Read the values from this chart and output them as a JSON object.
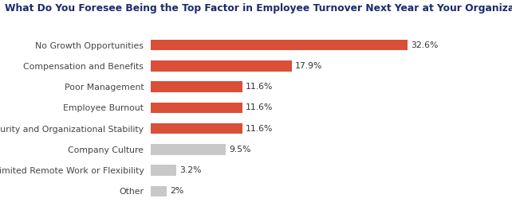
{
  "title": "What Do You Foresee Being the Top Factor in Employee Turnover Next Year at Your Organization?",
  "categories": [
    "Other",
    "Limited Remote Work or Flexibility",
    "Company Culture",
    "Job Security and Organizational Stability",
    "Employee Burnout",
    "Poor Management",
    "Compensation and Benefits",
    "No Growth Opportunities"
  ],
  "values": [
    2.0,
    3.2,
    9.5,
    11.6,
    11.6,
    11.6,
    17.9,
    32.6
  ],
  "labels": [
    "2%",
    "3.2%",
    "9.5%",
    "11.6%",
    "11.6%",
    "11.6%",
    "17.9%",
    "32.6%"
  ],
  "bar_colors": [
    "#c8c8c8",
    "#c8c8c8",
    "#c8c8c8",
    "#d94f38",
    "#d94f38",
    "#d94f38",
    "#d94f38",
    "#d94f38"
  ],
  "xlim": [
    0,
    40
  ],
  "title_fontsize": 8.8,
  "label_fontsize": 7.8,
  "value_fontsize": 7.8,
  "title_color": "#1a2b6d",
  "label_color": "#444444",
  "value_color": "#333333",
  "background_color": "#ffffff",
  "bar_height": 0.52
}
